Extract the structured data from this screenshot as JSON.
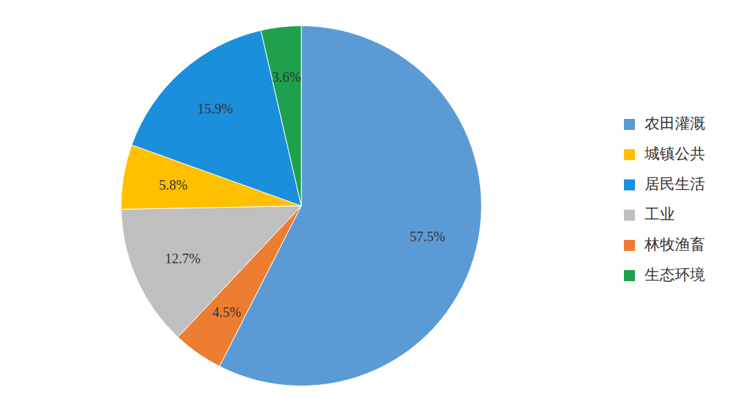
{
  "chart_data": {
    "type": "pie",
    "categories": [
      "农田灌溉",
      "林牧渔畜",
      "工业",
      "城镇公共",
      "居民生活",
      "生态环境"
    ],
    "values": [
      57.5,
      4.5,
      12.7,
      5.8,
      15.9,
      3.6
    ],
    "value_labels": [
      "57.5%",
      "4.5%",
      "12.7%",
      "5.8%",
      "15.9%",
      "3.6%"
    ],
    "colors": [
      "#5b9bd5",
      "#ed7d31",
      "#bfbfbf",
      "#ffc000",
      "#1a8fdc",
      "#1ea04c"
    ],
    "data_labels": true,
    "legend": "right"
  }
}
